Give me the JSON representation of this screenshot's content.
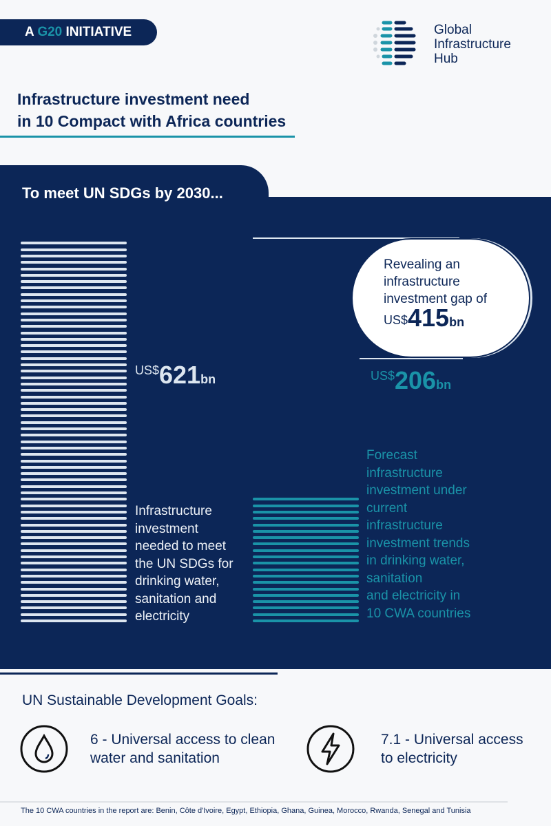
{
  "header": {
    "pill_prefix": "A",
    "pill_highlight": "G20",
    "pill_suffix": "INITIATIVE",
    "logo_line1": "Global",
    "logo_line2": "Infrastructure",
    "logo_line3": "Hub"
  },
  "title": {
    "line1": "Infrastructure investment need",
    "line2": "in 10 Compact with Africa countries"
  },
  "section_label": "To meet UN SDGs by 2030...",
  "colors": {
    "navy": "#0c2657",
    "teal": "#1a93a8",
    "stripe_light": "#dde6f0",
    "background": "#f7f8fa"
  },
  "chart_data": {
    "type": "bar",
    "categories": [
      "Infrastructure investment needed to meet the UN SDGs for drinking water, sanitation and electricity",
      "Forecast infrastructure investment under current infrastructure investment trends in drinking water, sanitation and electricity in 10 CWA countries"
    ],
    "values": [
      621,
      206
    ],
    "unit_prefix": "US$",
    "unit_suffix": "bn",
    "gap": {
      "value": 415,
      "text": [
        "Revealing an",
        "infrastructure",
        "investment gap of"
      ]
    }
  },
  "bars": [
    {
      "prefix": "US$",
      "value": "621",
      "unit": "bn",
      "desc": [
        "Infrastructure",
        "investment",
        "needed to meet",
        "the UN SDGs for",
        "drinking water,",
        "sanitation and",
        "electricity"
      ]
    },
    {
      "prefix": "US$",
      "value": "206",
      "unit": "bn",
      "desc": [
        "Forecast",
        "infrastructure",
        "investment under",
        "current",
        "infrastructure",
        "investment trends",
        "in drinking water,",
        "sanitation",
        "and electricity in",
        "10 CWA countries"
      ]
    }
  ],
  "gap": {
    "line1": "Revealing an",
    "line2": "infrastructure",
    "line3": "investment gap of",
    "prefix": "US$",
    "value": "415",
    "unit": "bn"
  },
  "sdgs": {
    "title": "UN Sustainable Development Goals:",
    "items": [
      {
        "icon": "water-drop-icon",
        "line1": "6 - Universal access to clean",
        "line2": "water and sanitation"
      },
      {
        "icon": "lightning-bolt-icon",
        "line1": "7.1 - Universal access",
        "line2": "to electricity"
      }
    ]
  },
  "footnote": "The 10 CWA countries in the report are: Benin, Côte d'Ivoire, Egypt, Ethiopia, Ghana, Guinea, Morocco, Rwanda, Senegal and Tunisia"
}
